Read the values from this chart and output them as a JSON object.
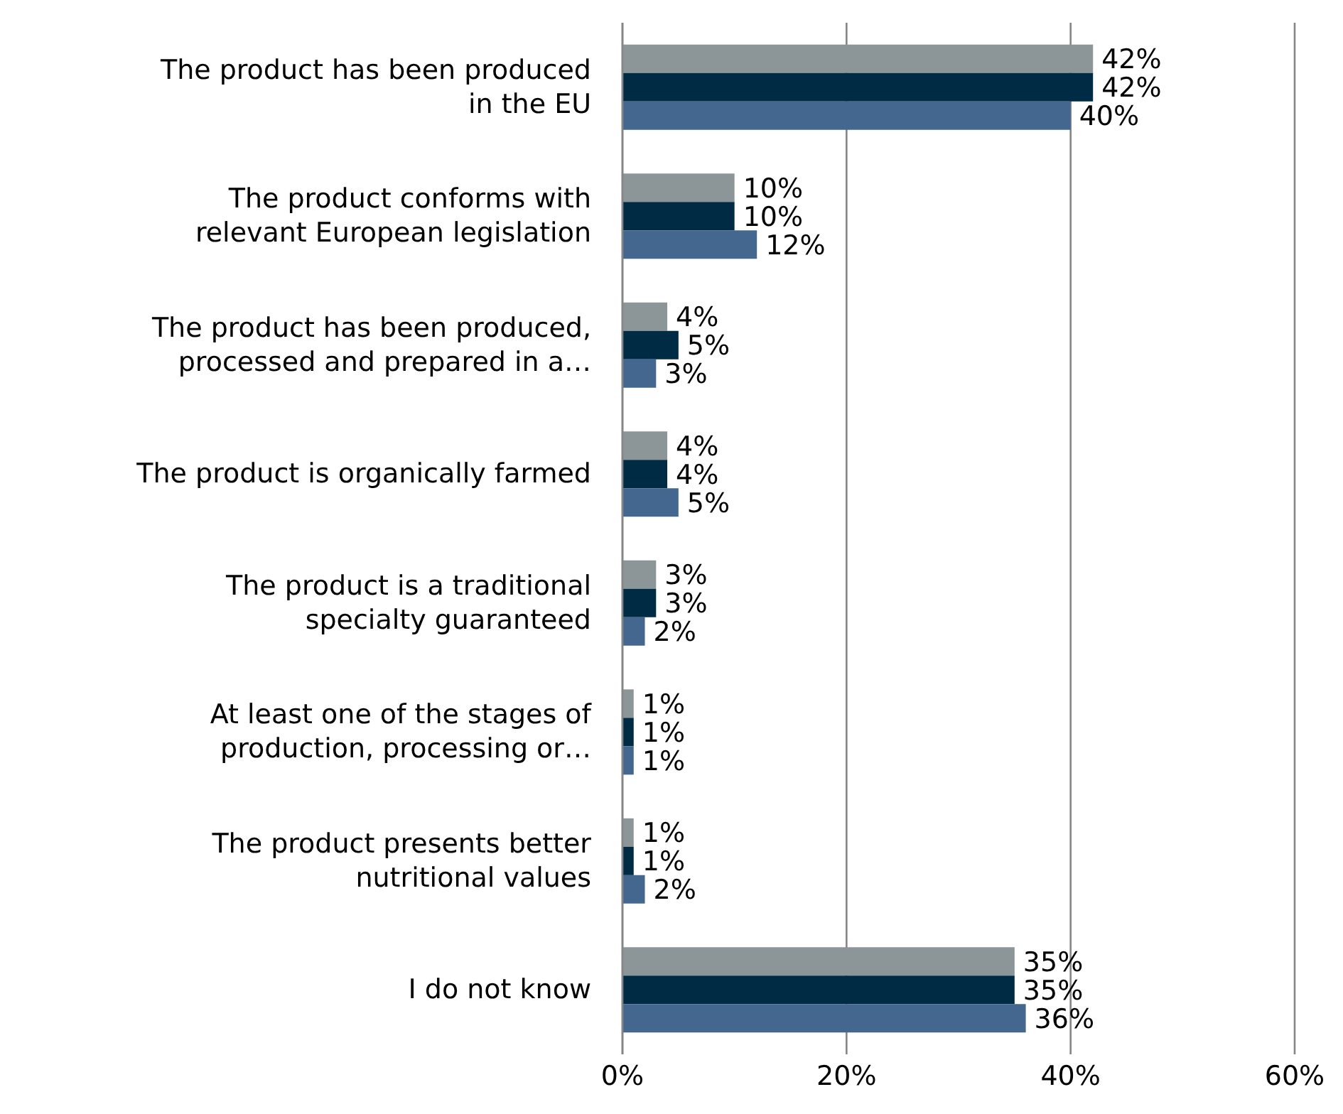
{
  "chart_data": {
    "type": "bar",
    "orientation": "horizontal",
    "categories": [
      "The product has been produced\nin the EU",
      "The product conforms with\nrelevant European legislation",
      "The product has been produced,\nprocessed and prepared in a…",
      "The product is organically farmed",
      "The product is a traditional\nspecialty guaranteed",
      "At least one of the stages of\nproduction, processing or…",
      "The product presents better\nnutritional values",
      "I do not know"
    ],
    "series": [
      {
        "color": "#8c9597",
        "values": [
          42,
          10,
          4,
          4,
          3,
          1,
          1,
          35
        ],
        "value_labels": [
          "42%",
          "10%",
          "4%",
          "4%",
          "3%",
          "1%",
          "1%",
          "35%"
        ]
      },
      {
        "color": "#002b45",
        "values": [
          42,
          10,
          5,
          4,
          3,
          1,
          1,
          35
        ],
        "value_labels": [
          "42%",
          "10%",
          "5%",
          "4%",
          "3%",
          "1%",
          "1%",
          "35%"
        ]
      },
      {
        "color": "#44678f",
        "values": [
          40,
          12,
          3,
          5,
          2,
          1,
          2,
          36
        ],
        "value_labels": [
          "40%",
          "12%",
          "3%",
          "5%",
          "2%",
          "1%",
          "2%",
          "36%"
        ]
      }
    ],
    "xlim": [
      0,
      60
    ],
    "xticks": [
      {
        "value": 0,
        "label": "0%"
      },
      {
        "value": 20,
        "label": "20%"
      },
      {
        "value": 40,
        "label": "40%"
      },
      {
        "value": 60,
        "label": "60%"
      }
    ],
    "grid": "x"
  }
}
